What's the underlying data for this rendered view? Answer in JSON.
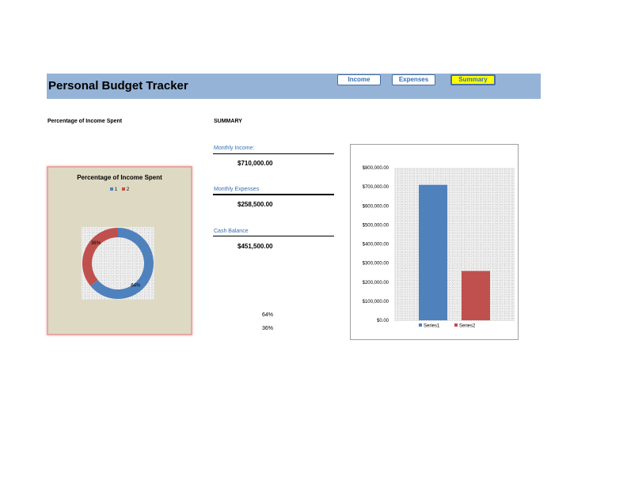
{
  "header": {
    "title": "Personal Budget Tracker",
    "tabs": [
      {
        "label": "Income",
        "active": false
      },
      {
        "label": "Expenses",
        "active": false
      },
      {
        "label": "Summary",
        "active": true
      }
    ]
  },
  "left_section_label": "Percentage of Income Spent",
  "summary": {
    "heading": "SUMMARY",
    "rows": [
      {
        "caption": "Monthly Income:",
        "value": "$710,000.00"
      },
      {
        "caption": "Monthly Expenses",
        "value": "$258,500.00"
      },
      {
        "caption": "Cash Balance",
        "value": "$451,500.00"
      }
    ],
    "percentages": [
      "64%",
      "36%"
    ]
  },
  "chart_data": [
    {
      "type": "pie",
      "variant": "donut",
      "title": "Percentage of Income Spent",
      "legend": [
        "1",
        "2"
      ],
      "legend_position": "top",
      "categories": [
        "1",
        "2"
      ],
      "values": [
        64,
        36
      ],
      "data_labels": [
        "64%",
        "36%"
      ],
      "colors": [
        "#4f81bd",
        "#c0504d"
      ]
    },
    {
      "type": "bar",
      "categories": [
        ""
      ],
      "series": [
        {
          "name": "Series1",
          "values": [
            710000
          ],
          "color": "#4f81bd"
        },
        {
          "name": "Series2",
          "values": [
            258500
          ],
          "color": "#c0504d"
        }
      ],
      "ylim": [
        0,
        800000
      ],
      "yticks": [
        0,
        100000,
        200000,
        300000,
        400000,
        500000,
        600000,
        700000,
        800000
      ],
      "ytick_labels": [
        "$0.00",
        "$100,000.00",
        "$200,000.00",
        "$300,000.00",
        "$400,000.00",
        "$500,000.00",
        "$600,000.00",
        "$700,000.00",
        "$800,000.00"
      ],
      "legend_position": "bottom",
      "grid": false
    }
  ]
}
